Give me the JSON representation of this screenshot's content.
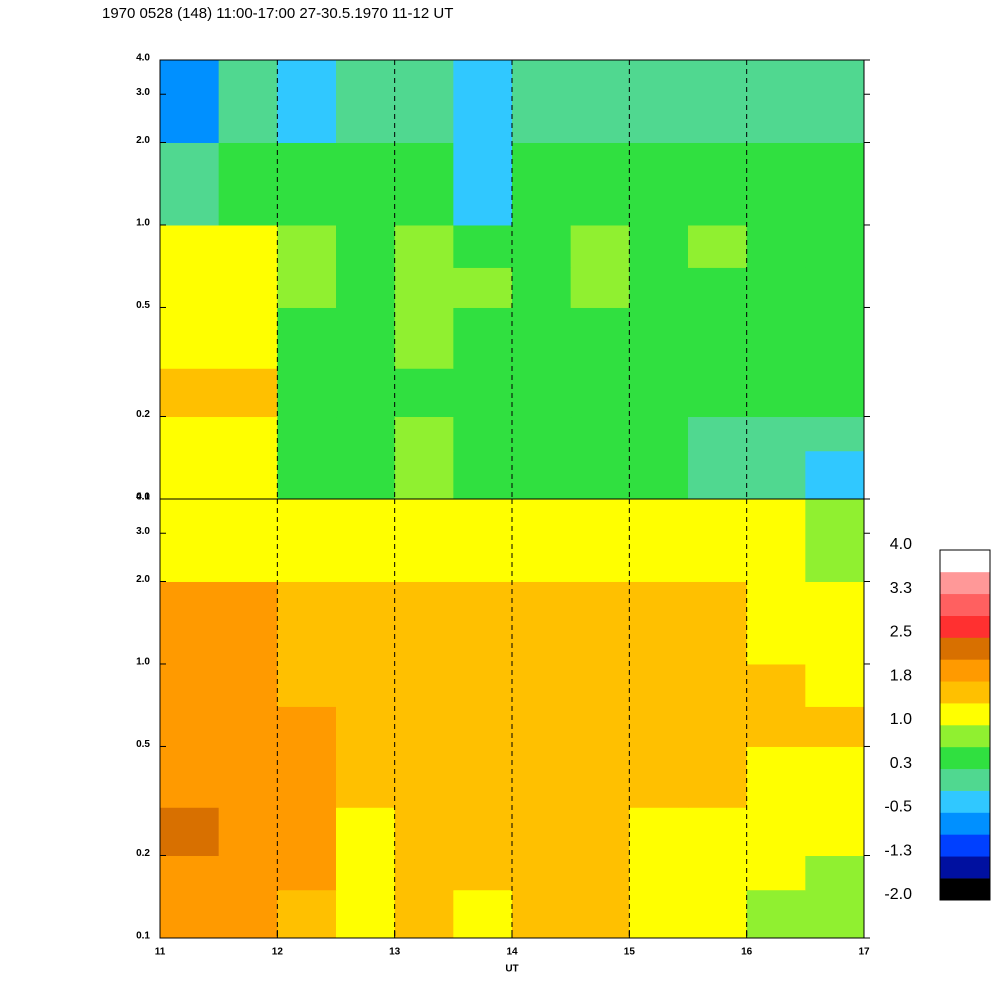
{
  "chart_data": {
    "type": "heatmap",
    "title": "1970 0528 (148) 11:00-17:00 27-30.5.1970  11-12 UT",
    "xlabel": "UT",
    "xlim": [
      11,
      17
    ],
    "xticks": [
      11,
      12,
      13,
      14,
      15,
      16,
      17
    ],
    "ylim": [
      0.1,
      4
    ],
    "yscale": "log",
    "yticks": [
      0.1,
      0.2,
      0.5,
      {
        "value": 1,
        "label": "1.0"
      },
      {
        "value": 2,
        "label": "2.0"
      },
      {
        "value": 3,
        "label": "3.0"
      },
      {
        "value": 4,
        "label": "4.0"
      }
    ],
    "grid": true,
    "x": [
      11,
      11.5,
      12,
      12.5,
      13,
      13.5,
      14,
      14.5,
      15,
      15.5,
      16,
      16.5,
      17
    ],
    "y": [
      0.1,
      0.15,
      0.2,
      0.3,
      0.5,
      0.7,
      1,
      2,
      4
    ],
    "panels": [
      {
        "values": [
          [
            1.2,
            1.0,
            0.3,
            0.5,
            0.8,
            0.3,
            0.3,
            0.3,
            0.3,
            0.0,
            0.0,
            -0.3
          ],
          [
            1.3,
            1.2,
            0.4,
            0.5,
            0.7,
            0.3,
            0.3,
            0.3,
            0.3,
            0.2,
            0.1,
            0.0
          ],
          [
            1.4,
            1.5,
            0.5,
            0.4,
            0.6,
            0.4,
            0.4,
            0.4,
            0.4,
            0.3,
            0.3,
            0.3
          ],
          [
            1.3,
            1.3,
            0.6,
            0.5,
            0.8,
            0.6,
            0.5,
            0.5,
            0.5,
            0.4,
            0.4,
            0.4
          ],
          [
            1.2,
            1.1,
            0.7,
            0.6,
            0.8,
            0.7,
            0.6,
            0.7,
            0.6,
            0.6,
            0.6,
            0.5
          ],
          [
            1.0,
            1.0,
            0.8,
            0.6,
            0.7,
            0.6,
            0.6,
            0.7,
            0.6,
            0.7,
            0.6,
            0.6
          ],
          [
            0.2,
            0.6,
            0.4,
            0.3,
            0.3,
            -0.2,
            0.3,
            0.4,
            0.3,
            0.4,
            0.3,
            0.3
          ],
          [
            -0.6,
            0.0,
            -0.2,
            0.0,
            0.0,
            -0.5,
            0.0,
            0.1,
            0.0,
            0.1,
            0.0,
            0.0
          ]
        ]
      },
      {
        "values": [
          [
            2.1,
            2.0,
            1.7,
            1.2,
            1.5,
            1.3,
            1.4,
            1.5,
            1.2,
            1.0,
            0.9,
            0.8
          ],
          [
            2.1,
            2.0,
            1.8,
            1.2,
            1.5,
            1.4,
            1.4,
            1.5,
            1.2,
            1.1,
            1.0,
            0.9
          ],
          [
            2.2,
            2.0,
            1.8,
            1.3,
            1.6,
            1.5,
            1.5,
            1.5,
            1.3,
            1.2,
            1.1,
            1.0
          ],
          [
            2.0,
            1.9,
            1.8,
            1.5,
            1.6,
            1.6,
            1.5,
            1.6,
            1.5,
            1.4,
            1.3,
            1.2
          ],
          [
            2.0,
            2.0,
            1.8,
            1.5,
            1.6,
            1.6,
            1.5,
            1.6,
            1.6,
            1.6,
            1.5,
            1.5
          ],
          [
            2.1,
            2.1,
            1.7,
            1.5,
            1.6,
            1.6,
            1.5,
            1.5,
            1.5,
            1.5,
            1.4,
            1.3
          ],
          [
            1.8,
            1.8,
            1.5,
            1.5,
            1.5,
            1.4,
            1.4,
            1.4,
            1.4,
            1.4,
            1.3,
            1.2
          ],
          [
            1.2,
            1.1,
            1.0,
            1.1,
            1.0,
            1.0,
            1.0,
            1.0,
            1.0,
            1.0,
            1.0,
            0.9
          ]
        ]
      }
    ],
    "colorbar": {
      "lim": [
        -2,
        4
      ],
      "colors": [
        "#000000",
        "#0010a0",
        "#0040ff",
        "#0090ff",
        "#30c8ff",
        "#50d890",
        "#30e040",
        "#90f030",
        "#ffff00",
        "#ffc000",
        "#ff9a00",
        "#d87000",
        "#ff3030",
        "#ff6060",
        "#ff9898",
        "#ffffff"
      ],
      "ticks": [
        {
          "value": 4,
          "label": "4.0"
        },
        {
          "value": 3.25,
          "label": "3.3"
        },
        2.5,
        {
          "value": 1.75,
          "label": "1.8"
        },
        {
          "value": 1,
          "label": "1.0"
        },
        {
          "value": 0.25,
          "label": "0.3"
        },
        -0.5,
        {
          "value": -1.25,
          "label": "-1.3"
        },
        {
          "value": -2,
          "label": "-2.0"
        }
      ]
    }
  }
}
